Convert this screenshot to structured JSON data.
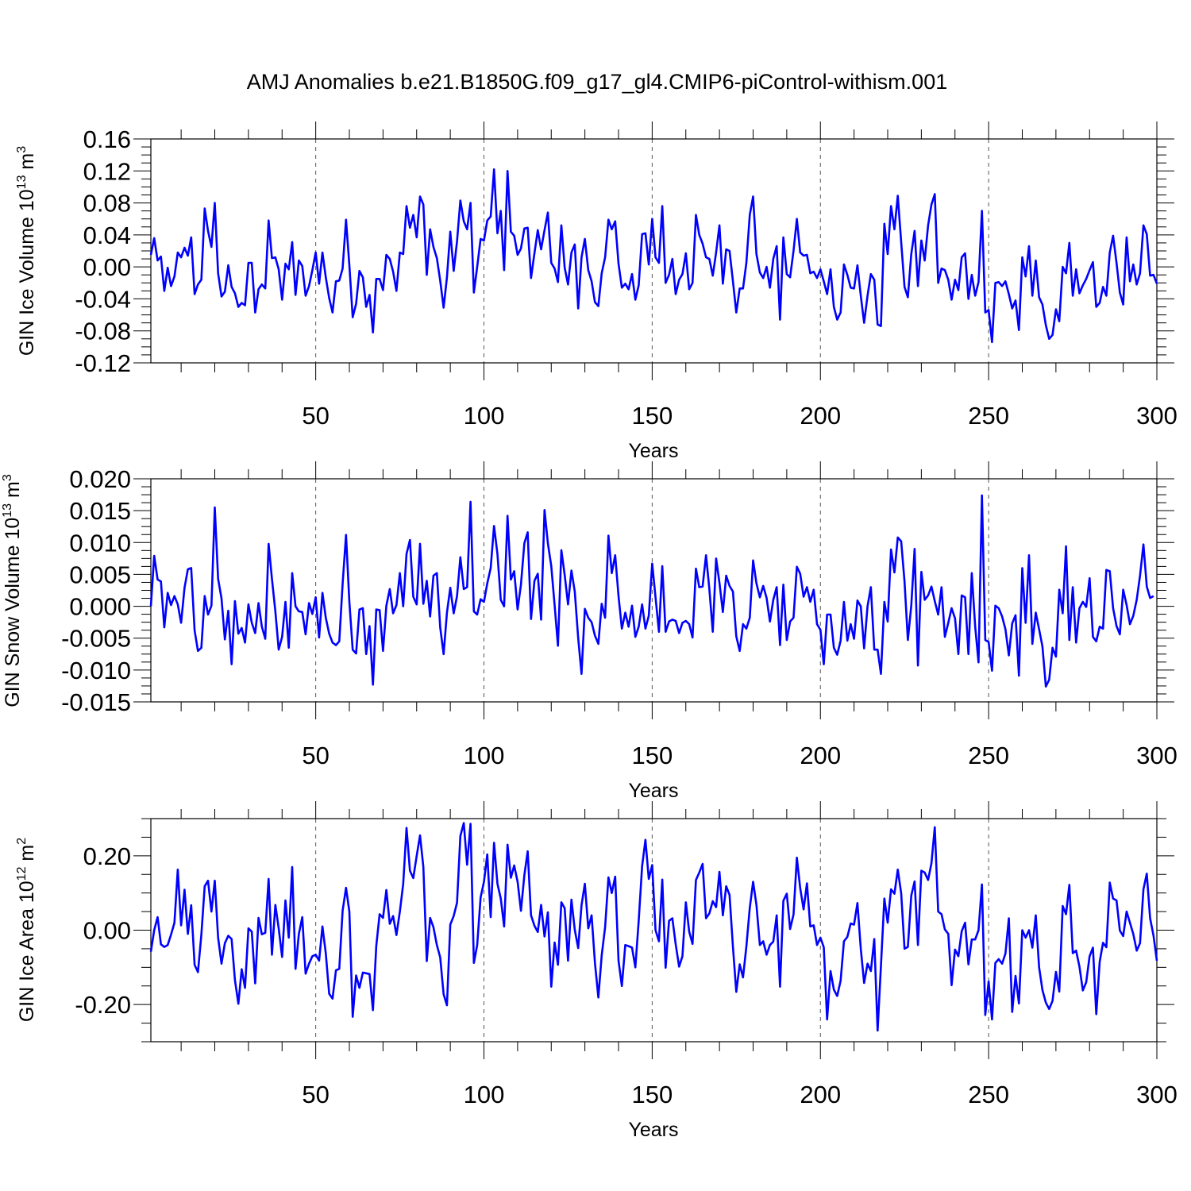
{
  "figure": {
    "title": "AMJ Anomalies b.e21.B1850G.f09_g17_gl4.CMIP6-piControl-withism.001"
  },
  "chart_data": [
    {
      "type": "line",
      "ylabel": "GIN Ice Volume 10",
      "ylabel_exp": "13",
      "ylabel_unit": "m",
      "ylabel_unit_exp": "3",
      "xlabel": "Years",
      "xlim": [
        1,
        300
      ],
      "ylim": [
        -0.12,
        0.16
      ],
      "xticks": [
        "50",
        "100",
        "150",
        "200",
        "250",
        "300"
      ],
      "yticks": [
        "0.16",
        "0.12",
        "0.08",
        "0.04",
        "0.00",
        "-0.04",
        "-0.08",
        "-0.12"
      ],
      "color": "#0000ff",
      "series": [
        {
          "values": [
            0.015,
            0.036,
            0.008,
            0.013,
            -0.03,
            -0.001,
            -0.024,
            -0.012,
            0.018,
            0.012,
            0.024,
            0.014,
            0.037,
            -0.034,
            -0.022,
            -0.016,
            0.073,
            0.045,
            0.025,
            0.08,
            -0.008,
            -0.037,
            -0.031,
            0.002,
            -0.025,
            -0.033,
            -0.05,
            -0.045,
            -0.048,
            0.005,
            0.005,
            -0.057,
            -0.028,
            -0.022,
            -0.027,
            0.058,
            0.011,
            0.012,
            -0.003,
            -0.041,
            0.004,
            -0.003,
            0.031,
            -0.035,
            0.008,
            0.001,
            -0.036,
            -0.024,
            -0.004,
            0.018,
            -0.021,
            0.018,
            -0.013,
            -0.039,
            -0.057,
            -0.018,
            -0.017,
            -0.002,
            0.059,
            0.002,
            -0.063,
            -0.046,
            -0.005,
            -0.013,
            -0.05,
            -0.035,
            -0.082,
            -0.015,
            -0.015,
            -0.029,
            0.015,
            0.01,
            -0.006,
            -0.03,
            0.018,
            0.016,
            0.076,
            0.049,
            0.065,
            0.037,
            0.088,
            0.078,
            -0.01,
            0.047,
            0.025,
            0.011,
            -0.017,
            -0.051,
            -0.013,
            0.044,
            -0.005,
            0.032,
            0.083,
            0.057,
            0.047,
            0.08,
            -0.032,
            0.0,
            0.035,
            0.033,
            0.058,
            0.063,
            0.122,
            0.042,
            0.07,
            -0.004,
            0.12,
            0.044,
            0.039,
            0.015,
            0.023,
            0.048,
            0.049,
            -0.014,
            0.017,
            0.046,
            0.022,
            0.046,
            0.068,
            0.005,
            -0.002,
            -0.019,
            0.052,
            -0.001,
            -0.022,
            0.018,
            0.028,
            -0.052,
            0.012,
            0.035,
            -0.004,
            -0.018,
            -0.044,
            -0.049,
            -0.008,
            0.012,
            0.059,
            0.047,
            0.057,
            0.004,
            -0.026,
            -0.021,
            -0.028,
            -0.009,
            -0.041,
            -0.023,
            0.041,
            0.042,
            0.003,
            0.06,
            0.012,
            0.005,
            0.076,
            -0.02,
            -0.01,
            0.01,
            -0.034,
            -0.016,
            -0.009,
            0.017,
            -0.028,
            -0.02,
            0.065,
            0.04,
            0.029,
            0.012,
            0.01,
            -0.011,
            0.018,
            0.052,
            -0.021,
            0.022,
            0.02,
            -0.018,
            -0.057,
            -0.027,
            -0.027,
            0.005,
            0.065,
            0.088,
            0.016,
            -0.007,
            -0.014,
            0.0,
            -0.026,
            0.01,
            0.026,
            -0.066,
            0.037,
            -0.009,
            -0.013,
            0.02,
            0.06,
            0.018,
            0.014,
            0.015,
            -0.008,
            -0.006,
            -0.014,
            -0.003,
            -0.018,
            -0.034,
            -0.003,
            -0.05,
            -0.066,
            -0.057,
            0.003,
            -0.01,
            -0.026,
            -0.027,
            0.002,
            -0.036,
            -0.07,
            -0.036,
            -0.009,
            -0.016,
            -0.072,
            -0.074,
            0.054,
            0.016,
            0.076,
            0.047,
            0.089,
            0.031,
            -0.025,
            -0.038,
            0.016,
            0.045,
            -0.024,
            0.033,
            0.008,
            0.052,
            0.078,
            0.091,
            -0.02,
            -0.002,
            -0.004,
            -0.016,
            -0.041,
            -0.016,
            -0.029,
            0.012,
            0.017,
            -0.04,
            -0.01,
            -0.036,
            -0.019,
            0.07,
            -0.057,
            -0.054,
            -0.094,
            -0.02,
            -0.019,
            -0.024,
            -0.018,
            -0.034,
            -0.052,
            -0.042,
            -0.079,
            0.012,
            -0.012,
            0.026,
            -0.036,
            0.008,
            -0.038,
            -0.047,
            -0.073,
            -0.09,
            -0.085,
            -0.053,
            -0.068,
            0.0,
            -0.008,
            0.03,
            -0.036,
            -0.003,
            -0.033,
            -0.023,
            -0.015,
            -0.004,
            0.006,
            -0.05,
            -0.045,
            -0.025,
            -0.036,
            0.018,
            0.039,
            0.005,
            -0.032,
            -0.047,
            0.037,
            -0.018,
            0.003,
            -0.022,
            -0.008,
            0.052,
            0.041,
            -0.011,
            -0.01,
            -0.021
          ]
        }
      ]
    },
    {
      "type": "line",
      "ylabel": "GIN Snow Volume 10",
      "ylabel_exp": "13",
      "ylabel_unit": "m",
      "ylabel_unit_exp": "3",
      "xlabel": "Years",
      "xlim": [
        1,
        300
      ],
      "ylim": [
        -0.015,
        0.02
      ],
      "xticks": [
        "50",
        "100",
        "150",
        "200",
        "250",
        "300"
      ],
      "yticks": [
        "0.020",
        "0.015",
        "0.010",
        "0.005",
        "0.000",
        "-0.005",
        "-0.010",
        "-0.015"
      ],
      "color": "#0000ff",
      "series": [
        {
          "values": [
            0.0,
            0.0079,
            0.0042,
            0.0039,
            -0.0033,
            0.0021,
            0.0002,
            0.0016,
            0.0003,
            -0.0026,
            0.0029,
            0.0058,
            0.006,
            -0.0038,
            -0.007,
            -0.0065,
            0.0016,
            -0.0013,
            0.0001,
            0.0155,
            0.0043,
            0.0012,
            -0.0052,
            -0.0007,
            -0.0091,
            0.0008,
            -0.0043,
            -0.0034,
            -0.0057,
            0.0003,
            -0.0026,
            -0.0042,
            0.0005,
            -0.0032,
            -0.0051,
            0.0098,
            0.0043,
            -0.0008,
            -0.0068,
            -0.0048,
            0.0007,
            -0.0065,
            0.0052,
            0.0,
            -0.0008,
            -0.0009,
            -0.0044,
            0.0005,
            -0.0012,
            0.0014,
            -0.0049,
            0.0021,
            -0.0018,
            -0.0043,
            -0.0057,
            -0.0061,
            -0.0055,
            0.0035,
            0.0112,
            0.0007,
            -0.0068,
            -0.0074,
            -0.0005,
            -0.0003,
            -0.0075,
            -0.0031,
            -0.0123,
            -0.0005,
            -0.0006,
            -0.007,
            0.0001,
            0.0027,
            -0.0011,
            0.0002,
            0.0052,
            0.0,
            0.0082,
            0.0104,
            0.0015,
            0.0003,
            0.0098,
            0.0004,
            0.004,
            -0.0016,
            0.0048,
            0.0052,
            -0.0033,
            -0.0075,
            -0.001,
            0.0029,
            -0.0011,
            0.0016,
            0.0077,
            0.0027,
            0.003,
            0.0164,
            -0.0008,
            -0.0013,
            0.0011,
            0.0007,
            0.0036,
            0.006,
            0.0126,
            0.0082,
            0.001,
            0.0,
            0.0142,
            0.0042,
            0.0055,
            -0.0005,
            0.0034,
            0.0099,
            0.0116,
            -0.002,
            0.004,
            0.0051,
            -0.0021,
            0.0151,
            0.0099,
            0.0063,
            0.0002,
            -0.0062,
            0.0088,
            0.0049,
            0.0003,
            0.0056,
            0.0023,
            -0.005,
            -0.0106,
            -0.0004,
            -0.0018,
            -0.0025,
            -0.0046,
            -0.0059,
            0.0004,
            -0.0018,
            0.0111,
            0.0052,
            0.008,
            0.0016,
            -0.0035,
            -0.001,
            -0.0032,
            0.0001,
            -0.0048,
            -0.0032,
            0.0003,
            -0.0035,
            -0.0015,
            0.0067,
            0.0014,
            -0.004,
            0.0063,
            -0.004,
            -0.0024,
            -0.0021,
            -0.0023,
            -0.0042,
            -0.0026,
            -0.0023,
            -0.0028,
            -0.0049,
            0.0059,
            0.003,
            0.0031,
            0.008,
            0.0027,
            -0.004,
            0.0075,
            0.0037,
            -0.0009,
            0.0048,
            0.0032,
            0.0023,
            -0.0047,
            -0.007,
            -0.0028,
            -0.0035,
            -0.0018,
            0.0072,
            0.0036,
            0.0014,
            0.0032,
            0.0013,
            -0.0024,
            0.001,
            0.003,
            -0.0061,
            0.0034,
            -0.0053,
            -0.0024,
            -0.0018,
            0.0062,
            0.0051,
            0.0015,
            0.003,
            0.0007,
            0.0026,
            -0.0028,
            -0.0037,
            -0.0091,
            -0.0013,
            -0.0013,
            -0.0065,
            -0.0076,
            -0.0054,
            0.0007,
            -0.0054,
            -0.0028,
            -0.0051,
            0.0009,
            0.0,
            -0.0066,
            0.0,
            0.003,
            -0.0068,
            -0.0068,
            -0.0106,
            0.0007,
            -0.0024,
            0.0089,
            0.0053,
            0.0108,
            0.0102,
            0.0039,
            -0.0053,
            0.0001,
            0.009,
            -0.0093,
            0.0054,
            0.001,
            0.0017,
            0.0031,
            0.0008,
            -0.0013,
            0.003,
            -0.0048,
            -0.0026,
            -0.0003,
            -0.0019,
            -0.0075,
            0.0017,
            0.0014,
            -0.0075,
            0.0052,
            -0.0032,
            -0.0088,
            0.0174,
            -0.0053,
            -0.0056,
            -0.0101,
            0.0001,
            -0.0003,
            -0.0016,
            -0.0036,
            -0.0077,
            -0.0027,
            -0.0014,
            -0.0109,
            0.006,
            -0.0026,
            0.008,
            -0.0059,
            -0.001,
            -0.0036,
            -0.0063,
            -0.0126,
            -0.0115,
            -0.0065,
            -0.0079,
            0.0026,
            -0.0011,
            0.0094,
            -0.0053,
            0.003,
            -0.0057,
            -0.0003,
            0.0007,
            -0.0001,
            0.0044,
            -0.0048,
            -0.0055,
            -0.0032,
            -0.0035,
            0.0057,
            0.0055,
            -0.0003,
            -0.0031,
            -0.0044,
            0.0026,
            0.0002,
            -0.0028,
            -0.0015,
            0.001,
            0.0048,
            0.0097,
            0.0031,
            0.0013,
            0.0016
          ]
        }
      ]
    },
    {
      "type": "line",
      "ylabel": "GIN Ice Area 10",
      "ylabel_exp": "12",
      "ylabel_unit": "m",
      "ylabel_unit_exp": "2",
      "xlabel": "Years",
      "xlim": [
        1,
        300
      ],
      "ylim": [
        -0.3,
        0.3
      ],
      "xticks": [
        "50",
        "100",
        "150",
        "200",
        "250",
        "300"
      ],
      "yticks": [
        "0.20",
        "0.00",
        "-0.20"
      ],
      "color": "#0000ff",
      "series": [
        {
          "values": [
            -0.058,
            0.0,
            0.035,
            -0.038,
            -0.045,
            -0.04,
            -0.012,
            0.02,
            0.163,
            0.013,
            0.109,
            -0.01,
            0.067,
            -0.093,
            -0.113,
            -0.012,
            0.118,
            0.133,
            0.05,
            0.133,
            -0.02,
            -0.09,
            -0.035,
            -0.015,
            -0.024,
            -0.134,
            -0.198,
            -0.105,
            -0.155,
            0.005,
            -0.004,
            -0.143,
            0.033,
            -0.011,
            -0.007,
            0.138,
            -0.066,
            0.068,
            0.005,
            -0.072,
            0.08,
            -0.02,
            0.17,
            -0.104,
            -0.01,
            0.035,
            -0.117,
            -0.09,
            -0.07,
            -0.066,
            -0.082,
            0.01,
            -0.062,
            -0.171,
            -0.184,
            -0.108,
            -0.104,
            0.052,
            0.114,
            0.05,
            -0.233,
            -0.122,
            -0.155,
            -0.114,
            -0.116,
            -0.118,
            -0.215,
            -0.042,
            0.043,
            0.033,
            0.108,
            0.017,
            0.038,
            -0.013,
            0.05,
            0.124,
            0.275,
            0.16,
            0.14,
            0.2,
            0.255,
            0.17,
            -0.083,
            0.033,
            0.008,
            -0.04,
            -0.073,
            -0.172,
            -0.202,
            0.015,
            0.038,
            0.074,
            0.253,
            0.288,
            0.176,
            0.286,
            -0.088,
            -0.04,
            0.088,
            0.13,
            0.204,
            0.035,
            0.235,
            0.125,
            0.085,
            0.01,
            0.23,
            0.141,
            0.174,
            0.13,
            0.052,
            0.148,
            0.212,
            0.04,
            0.012,
            -0.005,
            0.068,
            -0.017,
            0.048,
            -0.152,
            -0.033,
            -0.093,
            0.075,
            0.059,
            -0.082,
            0.082,
            0.001,
            -0.048,
            0.067,
            0.125,
            0.005,
            0.04,
            -0.088,
            -0.181,
            -0.068,
            0.008,
            0.142,
            0.1,
            0.144,
            -0.082,
            -0.15,
            -0.04,
            -0.043,
            -0.047,
            -0.1,
            0.025,
            0.172,
            0.243,
            0.138,
            0.175,
            0.0,
            -0.03,
            0.136,
            -0.101,
            0.025,
            0.032,
            -0.038,
            -0.098,
            -0.07,
            0.075,
            -0.004,
            -0.037,
            0.135,
            0.155,
            0.178,
            0.032,
            0.045,
            0.078,
            0.062,
            0.157,
            0.04,
            0.118,
            0.095,
            -0.045,
            -0.166,
            -0.092,
            -0.127,
            -0.044,
            0.06,
            0.13,
            0.068,
            -0.04,
            -0.03,
            -0.066,
            -0.04,
            -0.031,
            0.04,
            -0.152,
            0.079,
            0.098,
            0.003,
            0.042,
            0.195,
            0.113,
            0.056,
            0.126,
            0.01,
            0.013,
            -0.04,
            -0.02,
            -0.046,
            -0.24,
            -0.11,
            -0.16,
            -0.177,
            -0.136,
            -0.03,
            -0.018,
            0.018,
            0.015,
            0.073,
            -0.05,
            -0.142,
            -0.09,
            -0.11,
            -0.024,
            -0.27,
            -0.096,
            0.085,
            0.02,
            0.11,
            0.098,
            0.163,
            0.099,
            -0.05,
            -0.045,
            0.093,
            0.131,
            -0.04,
            0.16,
            0.155,
            0.135,
            0.18,
            0.277,
            0.05,
            0.043,
            0.002,
            -0.01,
            -0.148,
            -0.052,
            -0.07,
            -0.003,
            0.02,
            -0.092,
            -0.025,
            -0.025,
            0.0,
            0.123,
            -0.228,
            -0.138,
            -0.24,
            -0.088,
            -0.078,
            -0.09,
            -0.063,
            0.032,
            -0.22,
            -0.123,
            -0.197,
            0.0,
            -0.02,
            0.0,
            -0.047,
            0.04,
            -0.1,
            -0.161,
            -0.195,
            -0.212,
            -0.19,
            -0.112,
            -0.165,
            0.065,
            0.043,
            0.122,
            -0.062,
            -0.055,
            -0.098,
            -0.162,
            -0.14,
            -0.07,
            -0.047,
            -0.226,
            -0.085,
            -0.034,
            -0.046,
            0.128,
            0.085,
            0.08,
            -0.001,
            -0.016,
            0.05,
            0.02,
            -0.01,
            -0.055,
            -0.035,
            0.11,
            0.152,
            0.032,
            -0.015,
            -0.082
          ]
        }
      ]
    }
  ]
}
